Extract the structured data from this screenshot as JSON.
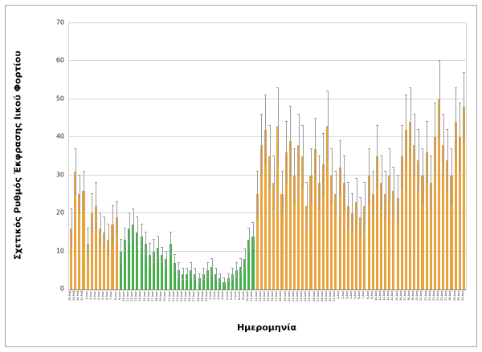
{
  "figure": {
    "ylabel": "Σχετικός Ρυθμός Έκφρασης Ιικού Φορτίου",
    "xlabel": "Ημερομηνία"
  },
  "chart_data": {
    "type": "bar",
    "title": "",
    "xlabel": "Ημερομηνία",
    "ylabel": "Σχετικός Ρυθμός Έκφρασης Ιικού Φορτίου",
    "ylim": [
      0,
      70
    ],
    "yticks": [
      0,
      10,
      20,
      30,
      40,
      50,
      60,
      70
    ],
    "grid": true,
    "legend": false,
    "error_bars": true,
    "bar_color_default": "#E8A33C",
    "error_bar_color": "#9a9a9a",
    "segments": [
      {
        "from": 0,
        "to": 11,
        "color": "#E8A33C"
      },
      {
        "from": 12,
        "to": 44,
        "color": "#43B049"
      },
      {
        "from": 45,
        "to": 95,
        "color": "#E8A33C"
      }
    ],
    "categories": [
      "28-Μαΐ",
      "29-Μαΐ",
      "30-Μαΐ",
      "31-Μαΐ",
      "1-Ιουν",
      "2-Ιουν",
      "3-Ιουν",
      "4-Ιουν",
      "5-Ιουν",
      "6-Ιουν",
      "7-Ιουν",
      "8-Ιουν",
      "9-Ιουν",
      "10-Ιουν",
      "11-Ιουν",
      "12-Ιουν",
      "13-Ιουν",
      "14-Ιουν",
      "15-Ιουν",
      "16-Ιουν",
      "17-Ιουν",
      "18-Ιουν",
      "19-Ιουν",
      "20-Ιουν",
      "21-Ιουν",
      "22-Ιουν",
      "23-Ιουν",
      "24-Ιουν",
      "25-Ιουν",
      "26-Ιουν",
      "27-Ιουν",
      "28-Ιουν",
      "29-Ιουν",
      "30-Ιουν",
      "1-Ιουλ",
      "2-Ιουλ",
      "3-Ιουλ",
      "4-Ιουλ",
      "5-Ιουλ",
      "6-Ιουλ",
      "7-Ιουλ",
      "8-Ιουλ",
      "9-Ιουλ",
      "10-Ιουλ",
      "11-Ιουλ",
      "12-Ιουλ",
      "13-Ιουλ",
      "14-Ιουλ",
      "15-Ιουλ",
      "16-Ιουλ",
      "17-Ιουλ",
      "18-Ιουλ",
      "19-Ιουλ",
      "20-Ιουλ",
      "21-Ιουλ",
      "22-Ιουλ",
      "23-Ιουλ",
      "24-Ιουλ",
      "25-Ιουλ",
      "26-Ιουλ",
      "27-Ιουλ",
      "28-Ιουλ",
      "29-Ιουλ",
      "30-Ιουλ",
      "31-Ιουλ",
      "1-Αυγ",
      "2-Αυγ",
      "3-Αυγ",
      "4-Αυγ",
      "5-Αυγ",
      "6-Αυγ",
      "7-Αυγ",
      "8-Αυγ",
      "9-Αυγ",
      "10-Αυγ",
      "11-Αυγ",
      "12-Αυγ",
      "13-Αυγ",
      "14-Αυγ",
      "15-Αυγ",
      "16-Αυγ",
      "17-Αυγ",
      "18-Αυγ",
      "19-Αυγ",
      "20-Αυγ",
      "21-Αυγ",
      "22-Αυγ",
      "23-Αυγ",
      "24-Αυγ",
      "25-Αυγ",
      "26-Αυγ",
      "27-Αυγ",
      "28-Αυγ",
      "29-Αυγ",
      "30-Αυγ",
      "31-Αυγ"
    ],
    "values": [
      16,
      31,
      25,
      26,
      12,
      20,
      22,
      16,
      15,
      13,
      17,
      19,
      10,
      13,
      16,
      17,
      15,
      14,
      12,
      9,
      10,
      11,
      9,
      8,
      12,
      7,
      5,
      4,
      4,
      5,
      4,
      3,
      4,
      5,
      6,
      4,
      3,
      2,
      3,
      4,
      5,
      6,
      8,
      13,
      14,
      25,
      38,
      42,
      35,
      28,
      43,
      25,
      36,
      39,
      30,
      38,
      35,
      22,
      30,
      37,
      28,
      33,
      43,
      30,
      25,
      32,
      28,
      22,
      20,
      23,
      19,
      22,
      30,
      25,
      35,
      28,
      25,
      30,
      26,
      24,
      35,
      42,
      44,
      38,
      34,
      30,
      36,
      28,
      40,
      50,
      38,
      34,
      30,
      44,
      40,
      48
    ],
    "errors": [
      5,
      6,
      5,
      5,
      4,
      5,
      6,
      4,
      4,
      4,
      5,
      4,
      3,
      3,
      4,
      4,
      4,
      3,
      3,
      3,
      3,
      3,
      2,
      2,
      3,
      2,
      2,
      1.5,
      1.5,
      2,
      1.5,
      1,
      1.5,
      2,
      2,
      1.5,
      1,
      1,
      1,
      1.5,
      2,
      2,
      2.5,
      3,
      3.5,
      6,
      8,
      9,
      8,
      7,
      10,
      6,
      8,
      9,
      7,
      8,
      8,
      6,
      7,
      8,
      7,
      8,
      9,
      7,
      6,
      7,
      7,
      6,
      5,
      6,
      5,
      6,
      7,
      6,
      8,
      7,
      6,
      7,
      6,
      6,
      8,
      9,
      9,
      8,
      8,
      7,
      8,
      7,
      9,
      10,
      8,
      8,
      7,
      9,
      9,
      9
    ]
  }
}
